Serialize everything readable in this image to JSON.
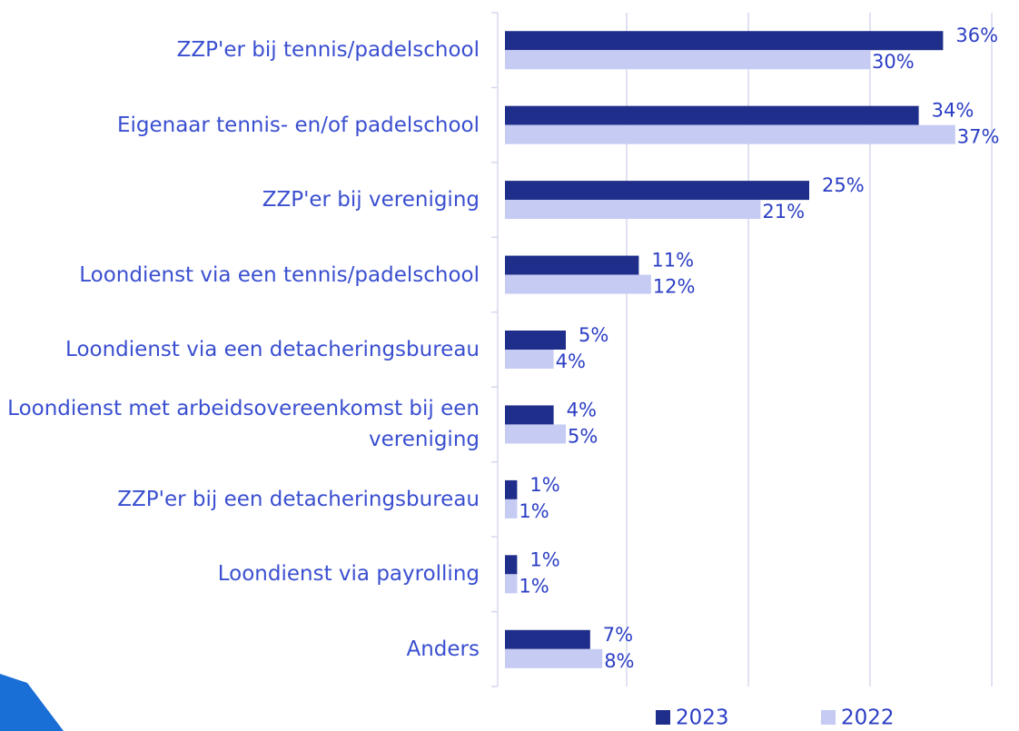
{
  "chart_data": {
    "type": "bar",
    "orientation": "horizontal",
    "categories": [
      "ZZP'er bij tennis/padelschool",
      "Eigenaar tennis- en/of padelschool",
      "ZZP'er bij vereniging",
      "Loondienst via een tennis/padelschool",
      "Loondienst via een detacheringsbureau",
      "Loondienst met arbeidsovereenkomst bij een vereniging",
      "ZZP'er bij een detacheringsbureau",
      "Loondienst via payrolling",
      "Anders"
    ],
    "series": [
      {
        "name": "2023",
        "color": "#1f2e8a",
        "values": [
          36,
          34,
          25,
          11,
          5,
          4,
          1,
          1,
          7
        ],
        "value_labels": [
          "36%",
          "34%",
          "25%",
          "11%",
          "5%",
          "4%",
          "1%",
          "1%",
          "7%"
        ]
      },
      {
        "name": "2022",
        "color": "#c5cbf3",
        "values": [
          30,
          37,
          21,
          12,
          4,
          5,
          1,
          1,
          8
        ],
        "value_labels": [
          "30%",
          "37%",
          "21%",
          "12%",
          "4%",
          "5%",
          "1%",
          "1%",
          "8%"
        ]
      }
    ],
    "xlim": [
      0,
      40
    ],
    "xticks": [
      0,
      10,
      20,
      30,
      40
    ],
    "grid": true,
    "legend": "bottom"
  }
}
